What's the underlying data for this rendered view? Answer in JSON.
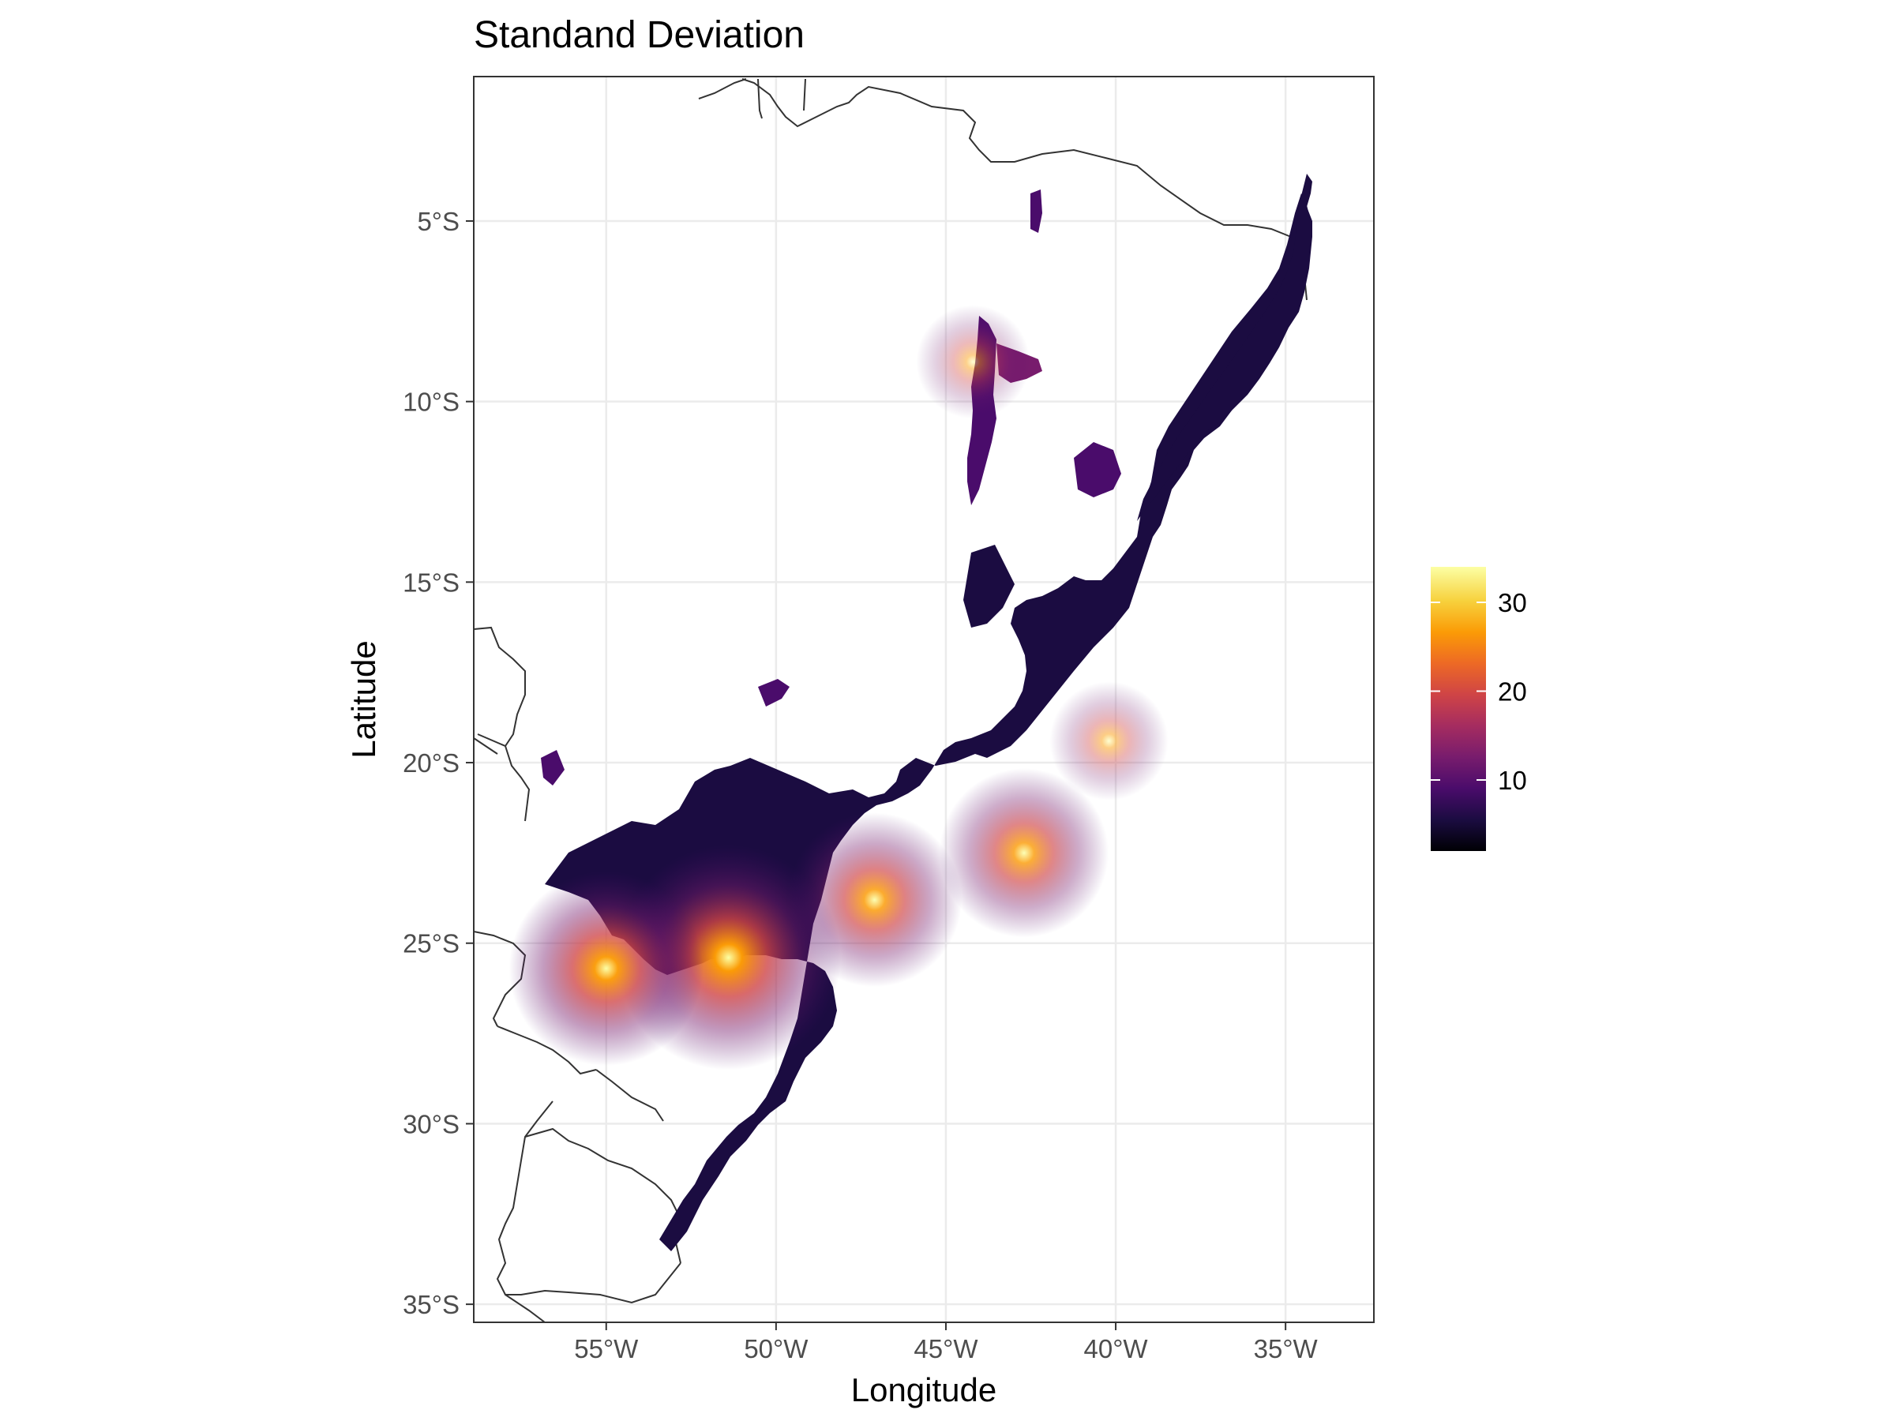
{
  "chart_data": {
    "type": "heatmap",
    "title": "Standand Deviation",
    "xlabel": "Longitude",
    "ylabel": "Latitude",
    "x_ticks": [
      "55°W",
      "50°W",
      "45°W",
      "40°W",
      "35°W"
    ],
    "y_ticks": [
      "5°S",
      "10°S",
      "15°S",
      "20°S",
      "25°S",
      "30°S",
      "35°S"
    ],
    "x_tick_values": [
      -55,
      -50,
      -45,
      -40,
      -35
    ],
    "y_tick_values": [
      -5,
      -10,
      -15,
      -20,
      -25,
      -30,
      -35
    ],
    "xlim": [
      -58.9,
      -32.4
    ],
    "ylim": [
      -35.5,
      -1
    ],
    "grid": true,
    "legend": {
      "placement": "right",
      "min": 2,
      "max": 34,
      "ticks": [
        "10",
        "20",
        "30"
      ],
      "tick_values": [
        10,
        20,
        30
      ],
      "colormap": "inferno",
      "colors": [
        "#000004",
        "#1b0c41",
        "#4a0c6b",
        "#781c6d",
        "#a52c60",
        "#cf4446",
        "#ed6925",
        "#fb9b06",
        "#f7d13d",
        "#fcffa4"
      ]
    },
    "hotspots": [
      {
        "lon": -51.4,
        "lat": -25.4,
        "value": 32
      },
      {
        "lon": -55.0,
        "lat": -25.7,
        "value": 26
      },
      {
        "lon": -47.1,
        "lat": -23.8,
        "value": 22
      },
      {
        "lon": -42.7,
        "lat": -22.5,
        "value": 21
      },
      {
        "lon": -40.2,
        "lat": -19.4,
        "value": 11
      },
      {
        "lon": -44.2,
        "lat": -8.9,
        "value": 10
      }
    ]
  },
  "colors": {
    "panel_border": "#333333",
    "grid": "#ebebeb",
    "country_border": "#333333",
    "tick_text": "#4d4d4d"
  }
}
